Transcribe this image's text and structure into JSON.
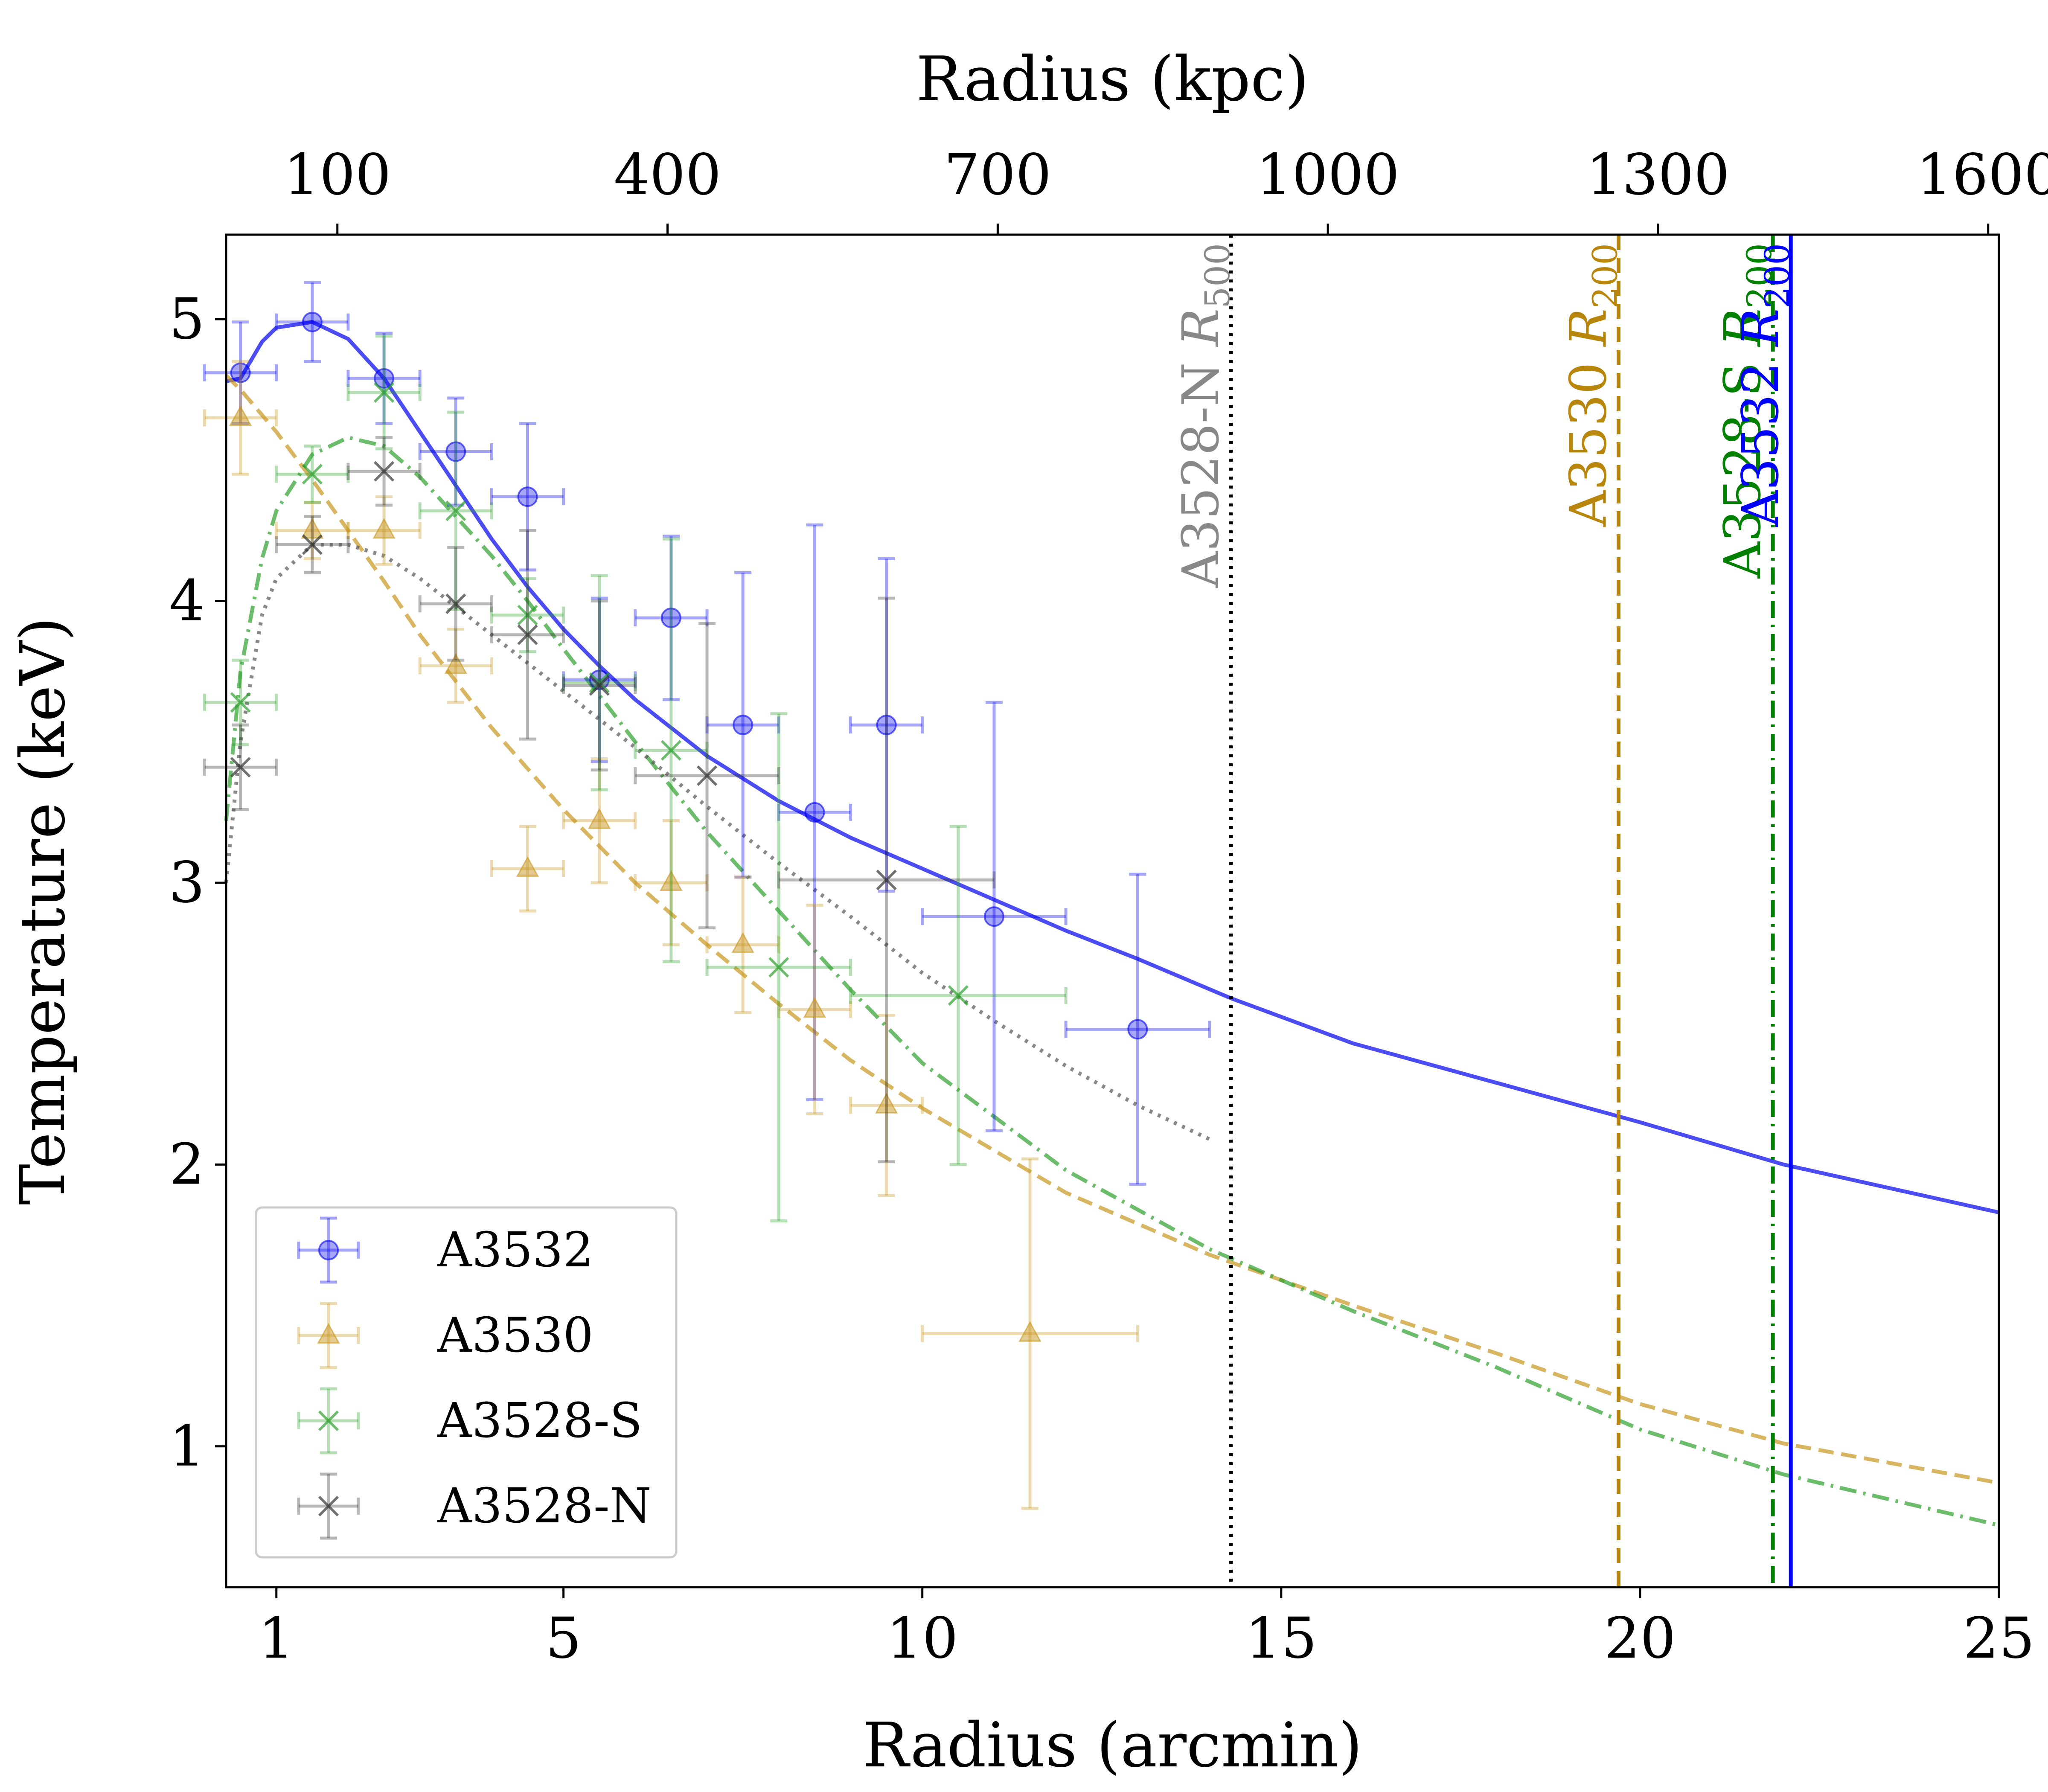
{
  "chart_data": {
    "type": "scatter",
    "title": "",
    "xlabel": "Radius (arcmin)",
    "ylabel": "Temperature (keV)",
    "top_xlabel": "Radius (kpc)",
    "xlim": [
      0.3,
      25
    ],
    "ylim": [
      0.5,
      5.3
    ],
    "x_ticks": [
      1,
      5,
      10,
      15,
      20,
      25
    ],
    "y_ticks": [
      1,
      2,
      3,
      4,
      5
    ],
    "top_x_ticks": [
      {
        "label": "100",
        "arcmin": 1.85
      },
      {
        "label": "400",
        "arcmin": 6.45
      },
      {
        "label": "700",
        "arcmin": 11.05
      },
      {
        "label": "1000",
        "arcmin": 15.65
      },
      {
        "label": "1300",
        "arcmin": 20.25
      },
      {
        "label": "1600",
        "arcmin": 24.85
      }
    ],
    "legend": {
      "placement": "lower-left",
      "entries": [
        "A3532",
        "A3530",
        "A3528-S",
        "A3528-N"
      ]
    },
    "series": [
      {
        "name": "A3532",
        "color": "#0000ee",
        "marker": "circle",
        "points": [
          {
            "x": 0.5,
            "y": 4.81,
            "xerr": 0.5,
            "yerr": 0.18
          },
          {
            "x": 1.5,
            "y": 4.99,
            "xerr": 0.5,
            "yerr": 0.14
          },
          {
            "x": 2.5,
            "y": 4.79,
            "xerr": 0.5,
            "yerr": 0.16
          },
          {
            "x": 3.5,
            "y": 4.53,
            "xerr": 0.5,
            "yerr": 0.19
          },
          {
            "x": 4.5,
            "y": 4.37,
            "xerr": 0.5,
            "yerr": 0.26
          },
          {
            "x": 5.5,
            "y": 3.72,
            "xerr": 0.5,
            "yerr": 0.29
          },
          {
            "x": 6.5,
            "y": 3.94,
            "xerr": 0.5,
            "yerr": 0.29
          },
          {
            "x": 7.5,
            "y": 3.56,
            "xerr": 0.5,
            "yerr": 0.54
          },
          {
            "x": 8.5,
            "y": 3.25,
            "xerr": 0.5,
            "yerr": 1.02
          },
          {
            "x": 9.5,
            "y": 3.56,
            "xerr": 0.5,
            "yerr": 0.59
          },
          {
            "x": 11.0,
            "y": 2.88,
            "xerr": 1.0,
            "yerr": 0.76
          },
          {
            "x": 13.0,
            "y": 2.48,
            "xerr": 1.0,
            "yerr": 0.55
          }
        ]
      },
      {
        "name": "A3530",
        "color": "#c8961e",
        "marker": "triangle",
        "points": [
          {
            "x": 0.5,
            "y": 4.65,
            "xerr": 0.5,
            "yerr": 0.2
          },
          {
            "x": 1.5,
            "y": 4.25,
            "xerr": 0.5,
            "yerr": 0.1
          },
          {
            "x": 2.5,
            "y": 4.25,
            "xerr": 0.5,
            "yerr": 0.12
          },
          {
            "x": 3.5,
            "y": 3.77,
            "xerr": 0.5,
            "yerr": 0.13
          },
          {
            "x": 4.5,
            "y": 3.05,
            "xerr": 0.5,
            "yerr": 0.15
          },
          {
            "x": 5.5,
            "y": 3.22,
            "xerr": 0.5,
            "yerr": 0.22
          },
          {
            "x": 6.5,
            "y": 3.0,
            "xerr": 0.5,
            "yerr": 0.22
          },
          {
            "x": 7.5,
            "y": 2.78,
            "xerr": 0.5,
            "yerr": 0.24
          },
          {
            "x": 8.5,
            "y": 2.55,
            "xerr": 0.5,
            "yerr": 0.37
          },
          {
            "x": 9.5,
            "y": 2.21,
            "xerr": 0.5,
            "yerr": 0.32
          },
          {
            "x": 11.5,
            "y": 1.4,
            "xerr": 1.5,
            "yerr": 0.62
          }
        ]
      },
      {
        "name": "A3528-S",
        "color": "#2ca02c",
        "marker": "x",
        "points": [
          {
            "x": 0.5,
            "y": 3.64,
            "xerr": 0.5,
            "yerr": 0.15
          },
          {
            "x": 1.5,
            "y": 4.45,
            "xerr": 0.5,
            "yerr": 0.1
          },
          {
            "x": 2.5,
            "y": 4.74,
            "xerr": 0.5,
            "yerr": 0.2
          },
          {
            "x": 3.5,
            "y": 4.32,
            "xerr": 0.5,
            "yerr": 0.35
          },
          {
            "x": 4.5,
            "y": 3.95,
            "xerr": 0.5,
            "yerr": 0.13
          },
          {
            "x": 5.5,
            "y": 3.71,
            "xerr": 0.5,
            "yerr": 0.38
          },
          {
            "x": 6.5,
            "y": 3.47,
            "xerr": 0.5,
            "yerr": 0.75
          },
          {
            "x": 8.0,
            "y": 2.7,
            "xerr": 1.0,
            "yerr": 0.9
          },
          {
            "x": 10.5,
            "y": 2.6,
            "xerr": 1.5,
            "yerr": 0.6
          }
        ]
      },
      {
        "name": "A3528-N",
        "color": "#333333",
        "marker": "x",
        "points": [
          {
            "x": 0.5,
            "y": 3.41,
            "xerr": 0.5,
            "yerr": 0.15
          },
          {
            "x": 1.5,
            "y": 4.2,
            "xerr": 0.5,
            "yerr": 0.1
          },
          {
            "x": 2.5,
            "y": 4.46,
            "xerr": 0.5,
            "yerr": 0.12
          },
          {
            "x": 3.5,
            "y": 3.99,
            "xerr": 0.5,
            "yerr": 0.2
          },
          {
            "x": 4.5,
            "y": 3.88,
            "xerr": 0.5,
            "yerr": 0.37
          },
          {
            "x": 5.5,
            "y": 3.7,
            "xerr": 0.5,
            "yerr": 0.3
          },
          {
            "x": 7.0,
            "y": 3.38,
            "xerr": 1.0,
            "yerr": 0.54
          },
          {
            "x": 9.5,
            "y": 3.01,
            "xerr": 1.5,
            "yerr": 1.0
          }
        ]
      }
    ],
    "fits": [
      {
        "name": "A3532 fit",
        "color": "#0000ee",
        "style": "solid",
        "x": [
          0.3,
          0.5,
          0.8,
          1.0,
          1.5,
          2.0,
          2.5,
          3.0,
          3.5,
          4.0,
          4.5,
          5.0,
          5.5,
          6.0,
          6.5,
          7.0,
          8.0,
          9.0,
          10.0,
          11.0,
          12.0,
          13.0,
          14.3,
          16.0,
          18.0,
          20.0,
          22.0,
          25.0
        ],
        "y": [
          4.78,
          4.79,
          4.92,
          4.97,
          4.99,
          4.93,
          4.79,
          4.6,
          4.41,
          4.22,
          4.05,
          3.9,
          3.77,
          3.65,
          3.55,
          3.45,
          3.29,
          3.16,
          3.05,
          2.94,
          2.83,
          2.73,
          2.59,
          2.43,
          2.29,
          2.15,
          2.0,
          1.83
        ]
      },
      {
        "name": "A3530 fit",
        "color": "#c8961e",
        "style": "dashed",
        "x": [
          0.3,
          0.5,
          1.0,
          1.5,
          2.0,
          2.5,
          3.0,
          4.0,
          5.0,
          6.0,
          7.0,
          8.0,
          9.0,
          10.0,
          12.0,
          14.0,
          16.0,
          18.0,
          20.0,
          22.0,
          25.0
        ],
        "y": [
          4.8,
          4.75,
          4.6,
          4.43,
          4.25,
          4.07,
          3.88,
          3.55,
          3.26,
          3.0,
          2.78,
          2.57,
          2.37,
          2.2,
          1.9,
          1.68,
          1.5,
          1.33,
          1.15,
          1.01,
          0.87
        ]
      },
      {
        "name": "A3528-S fit",
        "color": "#2ca02c",
        "style": "dash-dot",
        "x": [
          0.3,
          0.5,
          0.8,
          1.0,
          1.5,
          2.0,
          2.5,
          3.0,
          3.5,
          4.0,
          4.5,
          5.0,
          6.0,
          7.0,
          8.0,
          9.0,
          10.0,
          12.0,
          14.0,
          16.0,
          18.0,
          20.0,
          22.0,
          25.0
        ],
        "y": [
          3.22,
          3.75,
          4.15,
          4.32,
          4.52,
          4.58,
          4.55,
          4.44,
          4.3,
          4.16,
          4.0,
          3.83,
          3.5,
          3.18,
          2.9,
          2.62,
          2.36,
          1.98,
          1.7,
          1.48,
          1.28,
          1.06,
          0.9,
          0.72
        ]
      },
      {
        "name": "A3528-N fit",
        "color": "#555555",
        "style": "dotted",
        "x": [
          0.3,
          0.5,
          0.8,
          1.0,
          1.5,
          2.0,
          2.5,
          3.0,
          4.0,
          5.0,
          6.0,
          7.0,
          8.0,
          9.0,
          10.0,
          11.0,
          12.0,
          13.0,
          14.0
        ],
        "y": [
          3.0,
          3.5,
          3.95,
          4.08,
          4.2,
          4.2,
          4.16,
          4.08,
          3.88,
          3.68,
          3.48,
          3.27,
          3.07,
          2.88,
          2.68,
          2.51,
          2.35,
          2.21,
          2.09
        ]
      }
    ],
    "vertical_lines": [
      {
        "x": 14.3,
        "color": "#000000",
        "style": "dotted",
        "label": "A3528-N",
        "sub_label": "500",
        "label_color": "#888888"
      },
      {
        "x": 19.7,
        "color": "#b8860b",
        "style": "dashed",
        "label": "A3530",
        "sub_label": "200",
        "label_color": "#b8860b"
      },
      {
        "x": 21.85,
        "color": "#008000",
        "style": "dash-dot",
        "label": "A3528-S",
        "sub_label": "200",
        "label_color": "#008000"
      },
      {
        "x": 22.1,
        "color": "#0000ff",
        "style": "solid",
        "label": "A3532",
        "sub_label": "200",
        "label_color": "#0000ff"
      }
    ]
  }
}
